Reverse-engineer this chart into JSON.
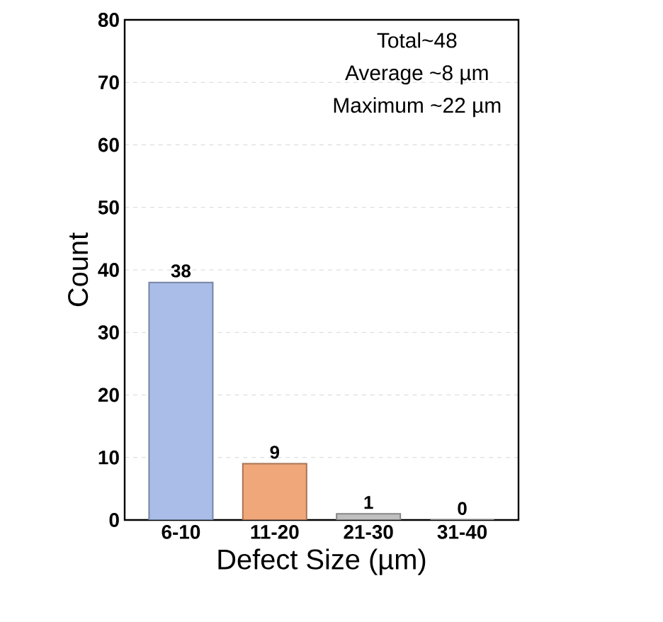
{
  "chart_data": {
    "type": "bar",
    "xlabel": "Defect Size (µm)",
    "ylabel": "Count",
    "categories": [
      "6-10",
      "11-20",
      "21-30",
      "31-40"
    ],
    "values": [
      38,
      9,
      1,
      0
    ],
    "colors": [
      "#a9bde8",
      "#f0a77a",
      "#c0c0c0",
      "#c0c0c0"
    ],
    "ylim": [
      0,
      80
    ],
    "yticks": [
      0,
      10,
      20,
      30,
      40,
      50,
      60,
      70,
      80
    ],
    "grid": "y",
    "data_labels": true,
    "annotations": [
      "Total~48",
      "Average ~8 µm",
      "Maximum ~22 µm"
    ]
  }
}
